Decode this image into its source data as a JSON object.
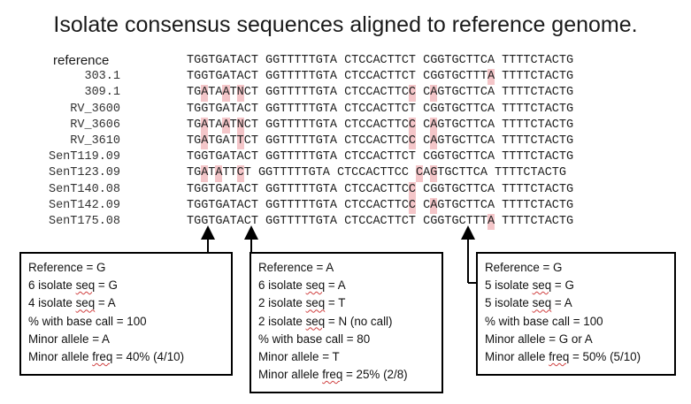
{
  "title": "Isolate consensus sequences aligned to reference genome.",
  "alignment": {
    "rows": [
      {
        "label": "reference",
        "seq": "TGGTGATACT GGTTTTTGTA CTCCACTTCT CGGTGCTTCA TTTTCTACTG",
        "hl": []
      },
      {
        "label": "303.1",
        "seq": "TGGTGATACT GGTTTTTGTA CTCCACTTCT CGGTGCTTTA TTTTCTACTG",
        "hl": [
          39
        ]
      },
      {
        "label": "309.1",
        "seq": "TGATAATNCT GGTTTTTGTA CTCCACTTCC CAGTGCTTCA TTTTCTACTG",
        "hl": [
          2,
          5,
          7,
          29,
          31
        ]
      },
      {
        "label": "RV_3600",
        "seq": "TGGTGATACT GGTTTTTGTA CTCCACTTCT CGGTGCTTCA TTTTCTACTG",
        "hl": []
      },
      {
        "label": "RV_3606",
        "seq": "TGATAATNCT GGTTTTTGTA CTCCACTTCC CAGTGCTTCA TTTTCTACTG",
        "hl": [
          2,
          5,
          7,
          29,
          31
        ]
      },
      {
        "label": "RV_3610",
        "seq": "TGATGATTCT GGTTTTTGTA CTCCACTTCC CAGTGCTTCA TTTTCTACTG",
        "hl": [
          2,
          7,
          29,
          31
        ]
      },
      {
        "label": "SenT119.09",
        "seq": "TGGTGATACT GGTTTTTGTA CTCCACTTCT CGGTGCTTCA TTTTCTACTG",
        "hl": []
      },
      {
        "label": "SenT123.09",
        "seq": "TGATATTCT GGTTTTTGTA CTCCACTTCC CAGTGCTTCA TTTTCTACTG",
        "hl": [
          2,
          4,
          7,
          29,
          31
        ]
      },
      {
        "label": "SenT140.08",
        "seq": "TGGTGATACT GGTTTTTGTA CTCCACTTCC CGGTGCTTCA TTTTCTACTG",
        "hl": [
          29
        ]
      },
      {
        "label": "SenT142.09",
        "seq": "TGGTGATACT GGTTTTTGTA CTCCACTTCC CAGTGCTTCA TTTTCTACTG",
        "hl": [
          29,
          31
        ]
      },
      {
        "label": "SenT175.08",
        "seq": "TGGTGATACT GGTTTTTGTA CTCCACTTCT CGGTGCTTTA TTTTCTACTG",
        "hl": [
          39
        ]
      }
    ]
  },
  "boxes": {
    "box1": [
      {
        "text": "Reference = G"
      },
      {
        "pre": "6 isolate ",
        "ul": "seq",
        "post": " = G"
      },
      {
        "pre": "4 isolate ",
        "ul": "seq",
        "post": " = A"
      },
      {
        "text": "% with base call = 100"
      },
      {
        "text": "Minor allele = A"
      },
      {
        "pre": "Minor allele ",
        "ul": "freq",
        "post": " = 40% (4/10)"
      }
    ],
    "box2": [
      {
        "text": "Reference = A"
      },
      {
        "pre": "6 isolate ",
        "ul": "seq",
        "post": " = A"
      },
      {
        "pre": "2 isolate ",
        "ul": "seq",
        "post": " = T"
      },
      {
        "pre": "2 isolate ",
        "ul": "seq",
        "post": " = N (no call)"
      },
      {
        "text": "% with base call = 80"
      },
      {
        "text": "Minor allele = T"
      },
      {
        "pre": "Minor allele ",
        "ul": "freq",
        "post": " = 25% (2/8)"
      }
    ],
    "box3": [
      {
        "text": "Reference = G"
      },
      {
        "pre": "5 isolate ",
        "ul": "seq",
        "post": " = G"
      },
      {
        "pre": "5 isolate ",
        "ul": "seq",
        "post": " = A"
      },
      {
        "text": "% with base call = 100"
      },
      {
        "text": "Minor allele = G or A"
      },
      {
        "pre": "Minor allele ",
        "ul": "freq",
        "post": " = 50% (5/10)"
      }
    ]
  },
  "colors": {
    "highlight": "#f4c6c9",
    "text": "#1f1f1f",
    "border": "#000000"
  }
}
